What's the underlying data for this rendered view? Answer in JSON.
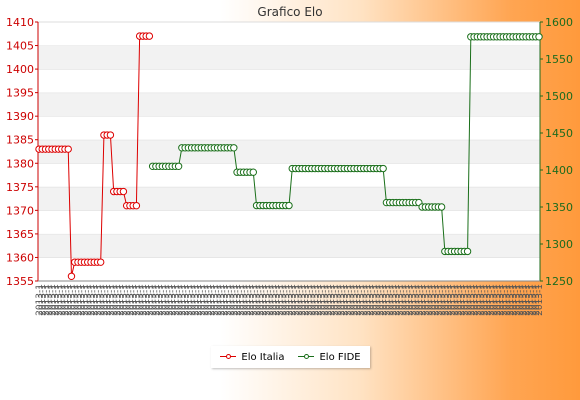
{
  "chart_data": {
    "type": "line",
    "title": "Grafico Elo",
    "series": [
      {
        "name": "Elo Italia",
        "axis": "left",
        "color": "#dd0000",
        "points": [
          [
            0,
            1383
          ],
          [
            1,
            1383
          ],
          [
            2,
            1383
          ],
          [
            3,
            1383
          ],
          [
            4,
            1383
          ],
          [
            5,
            1383
          ],
          [
            6,
            1383
          ],
          [
            7,
            1383
          ],
          [
            8,
            1383
          ],
          [
            9,
            1383
          ],
          [
            10,
            1356
          ],
          [
            11,
            1359
          ],
          [
            12,
            1359
          ],
          [
            13,
            1359
          ],
          [
            14,
            1359
          ],
          [
            15,
            1359
          ],
          [
            16,
            1359
          ],
          [
            17,
            1359
          ],
          [
            18,
            1359
          ],
          [
            19,
            1359
          ],
          [
            20,
            1386
          ],
          [
            21,
            1386
          ],
          [
            22,
            1386
          ],
          [
            23,
            1374
          ],
          [
            24,
            1374
          ],
          [
            25,
            1374
          ],
          [
            26,
            1374
          ],
          [
            27,
            1371
          ],
          [
            28,
            1371
          ],
          [
            29,
            1371
          ],
          [
            30,
            1371
          ],
          [
            31,
            1407
          ],
          [
            32,
            1407
          ],
          [
            33,
            1407
          ],
          [
            34,
            1407
          ]
        ]
      },
      {
        "name": "Elo FIDE",
        "axis": "right",
        "color": "#1a6f1a",
        "segments": [
          {
            "start": 35,
            "count": 9,
            "value": 1405
          },
          {
            "start": 44,
            "count": 17,
            "value": 1430
          },
          {
            "start": 61,
            "count": 6,
            "value": 1397
          },
          {
            "start": 67,
            "count": 11,
            "value": 1352
          },
          {
            "start": 78,
            "count": 29,
            "value": 1402
          },
          {
            "start": 107,
            "count": 11,
            "value": 1356
          },
          {
            "start": 118,
            "count": 7,
            "value": 1350
          },
          {
            "start": 125,
            "count": 8,
            "value": 1290
          },
          {
            "start": 133,
            "count": 22,
            "value": 1580
          }
        ]
      }
    ],
    "x_count": 155,
    "x_label_text": "2013-1",
    "y_left": {
      "min": 1355,
      "max": 1410,
      "ticks": [
        1355,
        1360,
        1365,
        1370,
        1375,
        1380,
        1385,
        1390,
        1395,
        1400,
        1405,
        1410
      ]
    },
    "y_right": {
      "min": 1250,
      "max": 1600,
      "ticks": [
        1250,
        1300,
        1350,
        1400,
        1450,
        1500,
        1550,
        1600
      ]
    },
    "grid": "horizontal bands",
    "legend": "bottom-center"
  },
  "legend": {
    "italia_label": "Elo Italia",
    "fide_label": "Elo FIDE"
  }
}
